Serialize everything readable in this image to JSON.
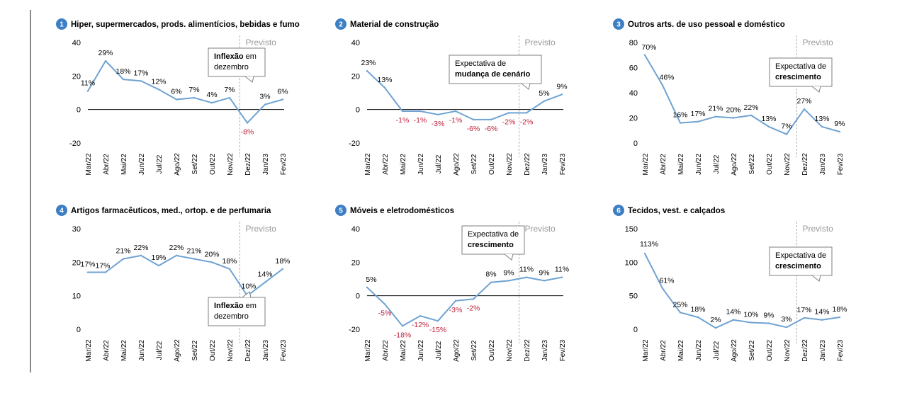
{
  "colors": {
    "line": "#6fa3d2",
    "negative_label": "#c0223b",
    "badge": "#3d7fc4",
    "previsto": "#9a9a9a",
    "zero_line": "#000000"
  },
  "previsto_label": "Previsto",
  "chart_data": [
    {
      "type": "line",
      "number": "1",
      "title": "Hiper, supermercados, prods. alimentícios, bebidas e fumo",
      "categories": [
        "Mar/22",
        "Abr/22",
        "Mai/22",
        "Jun/22",
        "Jul/22",
        "Ago/22",
        "Set/22",
        "Out/22",
        "Nov/22",
        "Dez/22",
        "Jan/23",
        "Fev/23"
      ],
      "values": [
        11,
        29,
        18,
        17,
        12,
        6,
        7,
        4,
        7,
        -8,
        3,
        6
      ],
      "labels": [
        "11%",
        "29%",
        "18%",
        "17%",
        "12%",
        "6%",
        "7%",
        "4%",
        "7%",
        "-8%",
        "3%",
        "6%"
      ],
      "ylim": [
        -20,
        40
      ],
      "yticks": [
        "-20",
        "0",
        "20",
        "40"
      ],
      "ytick_values": [
        -20,
        0,
        20,
        40
      ],
      "zero_line": true,
      "forecast_start_index": 9,
      "callout": {
        "lines": [
          [
            "Inflexão",
            " em"
          ],
          [
            "dezembro"
          ]
        ],
        "bold_segments": [
          "Inflexão"
        ],
        "anchor": "above"
      }
    },
    {
      "type": "line",
      "number": "2",
      "title": "Material de construção",
      "categories": [
        "Mar/22",
        "Abr/22",
        "Mai/22",
        "Jun/22",
        "Jul/22",
        "Ago/22",
        "Set/22",
        "Out/22",
        "Nov/22",
        "Dez/22",
        "Jan/23",
        "Fev/23"
      ],
      "values": [
        23,
        13,
        -1,
        -1,
        -3,
        -1,
        -6,
        -6,
        -2,
        -2,
        5,
        9
      ],
      "labels": [
        "23%",
        "13%",
        "-1%",
        "-1%",
        "-3%",
        "-1%",
        "-6%",
        "-6%",
        "-2%",
        "-2%",
        "5%",
        "9%"
      ],
      "ylim": [
        -20,
        40
      ],
      "yticks": [
        "-20",
        "0",
        "20",
        "40"
      ],
      "ytick_values": [
        -20,
        0,
        20,
        40
      ],
      "zero_line": true,
      "forecast_start_index": 9,
      "callout": {
        "lines": [
          [
            "Expectativa de"
          ],
          [
            "mudança de cenário"
          ]
        ],
        "bold_segments": [
          "mudança de cenário"
        ],
        "anchor": "above"
      }
    },
    {
      "type": "line",
      "number": "3",
      "title": "Outros arts. de uso pessoal e doméstico",
      "categories": [
        "Mar/22",
        "Abr/22",
        "Mai/22",
        "Jun/22",
        "Jul/22",
        "Ago/22",
        "Set/22",
        "Out/22",
        "Nov/22",
        "Dez/22",
        "Jan/23",
        "Fev/23"
      ],
      "values": [
        70,
        46,
        16,
        17,
        21,
        20,
        22,
        13,
        7,
        27,
        13,
        9
      ],
      "labels": [
        "70%",
        "46%",
        "16%",
        "17%",
        "21%",
        "20%",
        "22%",
        "13%",
        "7%",
        "27%",
        "13%",
        "9%"
      ],
      "ylim": [
        0,
        80
      ],
      "yticks": [
        "0",
        "20",
        "40",
        "60",
        "80"
      ],
      "ytick_values": [
        0,
        20,
        40,
        60,
        80
      ],
      "zero_line": false,
      "forecast_start_index": 9,
      "callout": {
        "lines": [
          [
            "Expectativa de"
          ],
          [
            "crescimento"
          ]
        ],
        "bold_segments": [
          "crescimento"
        ],
        "anchor": "above"
      }
    },
    {
      "type": "line",
      "number": "4",
      "title": "Artigos farmacêuticos, med., ortop. e de perfumaria",
      "categories": [
        "Mar/22",
        "Abr/22",
        "Mai/22",
        "Jun/22",
        "Jul/22",
        "Ago/22",
        "Set/22",
        "Out/22",
        "Nov/22",
        "Dez/22",
        "Jan/23",
        "Fev/23"
      ],
      "values": [
        17,
        17,
        21,
        22,
        19,
        22,
        21,
        20,
        18,
        10,
        14,
        18
      ],
      "labels": [
        "17%",
        "17%",
        "21%",
        "22%",
        "19%",
        "22%",
        "21%",
        "20%",
        "18%",
        "10%",
        "14%",
        "18%"
      ],
      "ylim": [
        0,
        30
      ],
      "yticks": [
        "0",
        "10",
        "20",
        "30"
      ],
      "ytick_values": [
        0,
        10,
        20,
        30
      ],
      "zero_line": false,
      "forecast_start_index": 9,
      "callout": {
        "lines": [
          [
            "Inflexão",
            " em"
          ],
          [
            "dezembro"
          ]
        ],
        "bold_segments": [
          "Inflexão"
        ],
        "anchor": "below"
      }
    },
    {
      "type": "line",
      "number": "5",
      "title": "Móveis e eletrodomésticos",
      "categories": [
        "Mar/22",
        "Abr/22",
        "Mai/22",
        "Jun/22",
        "Jul/22",
        "Ago/22",
        "Set/22",
        "Out/22",
        "Nov/22",
        "Dez/22",
        "Jan/23",
        "Fev/23"
      ],
      "values": [
        5,
        -5,
        -18,
        -12,
        -15,
        -3,
        -2,
        8,
        9,
        11,
        9,
        11
      ],
      "labels": [
        "5%",
        "-5%",
        "-18%",
        "-12%",
        "-15%",
        "-3%",
        "-2%",
        "8%",
        "9%",
        "11%",
        "9%",
        "11%"
      ],
      "ylim": [
        -20,
        40
      ],
      "yticks": [
        "-20",
        "0",
        "20",
        "40"
      ],
      "ytick_values": [
        -20,
        0,
        20,
        40
      ],
      "zero_line": true,
      "forecast_start_index": 9,
      "callout": {
        "lines": [
          [
            "Expectativa de"
          ],
          [
            "crescimento"
          ]
        ],
        "bold_segments": [
          "crescimento"
        ],
        "anchor": "above"
      }
    },
    {
      "type": "line",
      "number": "6",
      "title": "Tecidos, vest. e calçados",
      "categories": [
        "Mar/22",
        "Abr/22",
        "Mai/22",
        "Jun/22",
        "Jul/22",
        "Ago/22",
        "Set/22",
        "Out/22",
        "Nov/22",
        "Dez/22",
        "Jan/23",
        "Fev/23"
      ],
      "values": [
        113,
        61,
        25,
        18,
        2,
        14,
        10,
        9,
        3,
        17,
        14,
        18
      ],
      "labels": [
        "113%",
        "61%",
        "25%",
        "18%",
        "2%",
        "14%",
        "10%",
        "9%",
        "3%",
        "17%",
        "14%",
        "18%"
      ],
      "ylim": [
        0,
        150
      ],
      "yticks": [
        "0",
        "50",
        "100",
        "150"
      ],
      "ytick_values": [
        0,
        50,
        100,
        150
      ],
      "zero_line": false,
      "forecast_start_index": 9,
      "callout": {
        "lines": [
          [
            "Expectativa de"
          ],
          [
            "crescimento"
          ]
        ],
        "bold_segments": [
          "crescimento"
        ],
        "anchor": "above"
      }
    }
  ]
}
